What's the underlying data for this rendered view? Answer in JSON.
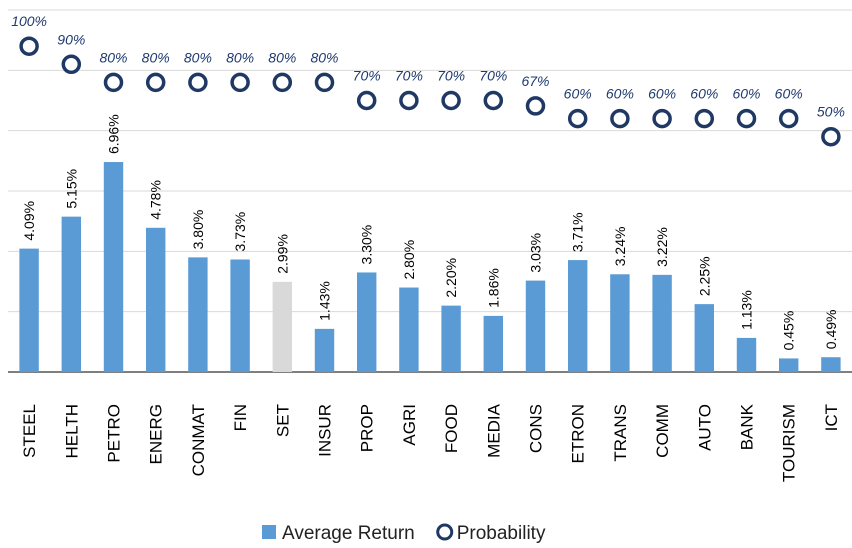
{
  "chart_data": {
    "type": "bar",
    "categories": [
      "STEEL",
      "HELTH",
      "PETRO",
      "ENERG",
      "CONMAT",
      "FIN",
      "SET",
      "INSUR",
      "PROP",
      "AGRI",
      "FOOD",
      "MEDIA",
      "CONS",
      "ETRON",
      "TRANS",
      "COMM",
      "AUTO",
      "BANK",
      "TOURISM",
      "ICT"
    ],
    "series": [
      {
        "name": "Average Return",
        "type": "bar",
        "color": "#5b9bd5",
        "colors": [
          "#5b9bd5",
          "#5b9bd5",
          "#5b9bd5",
          "#5b9bd5",
          "#5b9bd5",
          "#5b9bd5",
          "#d9d9d9",
          "#5b9bd5",
          "#5b9bd5",
          "#5b9bd5",
          "#5b9bd5",
          "#5b9bd5",
          "#5b9bd5",
          "#5b9bd5",
          "#5b9bd5",
          "#5b9bd5",
          "#5b9bd5",
          "#5b9bd5",
          "#5b9bd5",
          "#5b9bd5"
        ],
        "values": [
          4.09,
          5.15,
          6.96,
          4.78,
          3.8,
          3.73,
          2.99,
          1.43,
          3.3,
          2.8,
          2.2,
          1.86,
          3.03,
          3.71,
          3.24,
          3.22,
          2.25,
          1.13,
          0.45,
          0.49
        ],
        "value_labels": [
          "4.09%",
          "5.15%",
          "6.96%",
          "4.78%",
          "3.80%",
          "3.73%",
          "2.99%",
          "1.43%",
          "3.30%",
          "2.80%",
          "2.20%",
          "1.86%",
          "3.03%",
          "3.71%",
          "3.24%",
          "3.22%",
          "2.25%",
          "1.13%",
          "0.45%",
          "0.49%"
        ]
      },
      {
        "name": "Probability",
        "type": "scatter",
        "axis": "y2",
        "color": "#1f3864",
        "values": [
          100,
          90,
          80,
          80,
          80,
          80,
          80,
          80,
          70,
          70,
          70,
          70,
          67,
          60,
          60,
          60,
          60,
          60,
          60,
          50
        ],
        "value_labels": [
          "100%",
          "90%",
          "80%",
          "80%",
          "80%",
          "80%",
          "80%",
          "80%",
          "70%",
          "70%",
          "70%",
          "70%",
          "67%",
          "60%",
          "60%",
          "60%",
          "60%",
          "60%",
          "60%",
          "50%"
        ]
      }
    ],
    "ylim": [
      0,
      12
    ],
    "yticks": [
      0,
      2,
      4,
      6,
      8,
      10,
      12
    ],
    "y2lim": [
      -80,
      120
    ],
    "grid": true,
    "legend": "bottom"
  }
}
